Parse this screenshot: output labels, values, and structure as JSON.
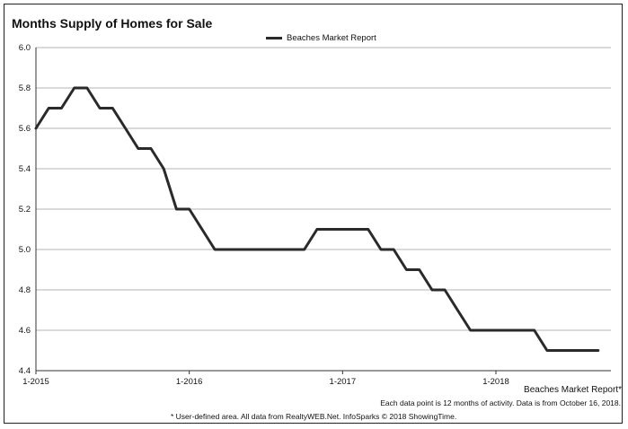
{
  "chart_data": {
    "type": "line",
    "title": "Months Supply of Homes for Sale",
    "xlabel": "",
    "ylabel": "",
    "ylim": [
      4.4,
      6.0
    ],
    "yticks": [
      "4.4",
      "4.6",
      "4.8",
      "5.0",
      "5.2",
      "5.4",
      "5.6",
      "5.8",
      "6.0"
    ],
    "xlim": [
      0,
      45
    ],
    "xticks": [
      {
        "label": "1-2015",
        "index": 0
      },
      {
        "label": "1-2016",
        "index": 12
      },
      {
        "label": "1-2017",
        "index": 24
      },
      {
        "label": "1-2018",
        "index": 36
      }
    ],
    "grid": true,
    "legend_placement": "top-center",
    "series": [
      {
        "name": "Beaches Market Report",
        "color": "#2a2a2a",
        "values": [
          5.6,
          5.7,
          5.7,
          5.8,
          5.8,
          5.7,
          5.7,
          5.6,
          5.5,
          5.5,
          5.4,
          5.2,
          5.2,
          5.1,
          5.0,
          5.0,
          5.0,
          5.0,
          5.0,
          5.0,
          5.0,
          5.0,
          5.1,
          5.1,
          5.1,
          5.1,
          5.1,
          5.0,
          5.0,
          4.9,
          4.9,
          4.8,
          4.8,
          4.7,
          4.6,
          4.6,
          4.6,
          4.6,
          4.6,
          4.6,
          4.5,
          4.5,
          4.5,
          4.5,
          4.5
        ]
      }
    ]
  },
  "footer": {
    "series_label": "Beaches Market Report*",
    "note1": "Each data point is 12 months of activity. Data is from October 16, 2018.",
    "note2": "* User-defined area. All data from RealtyWEB.Net. InfoSparks © 2018 ShowingTime."
  }
}
